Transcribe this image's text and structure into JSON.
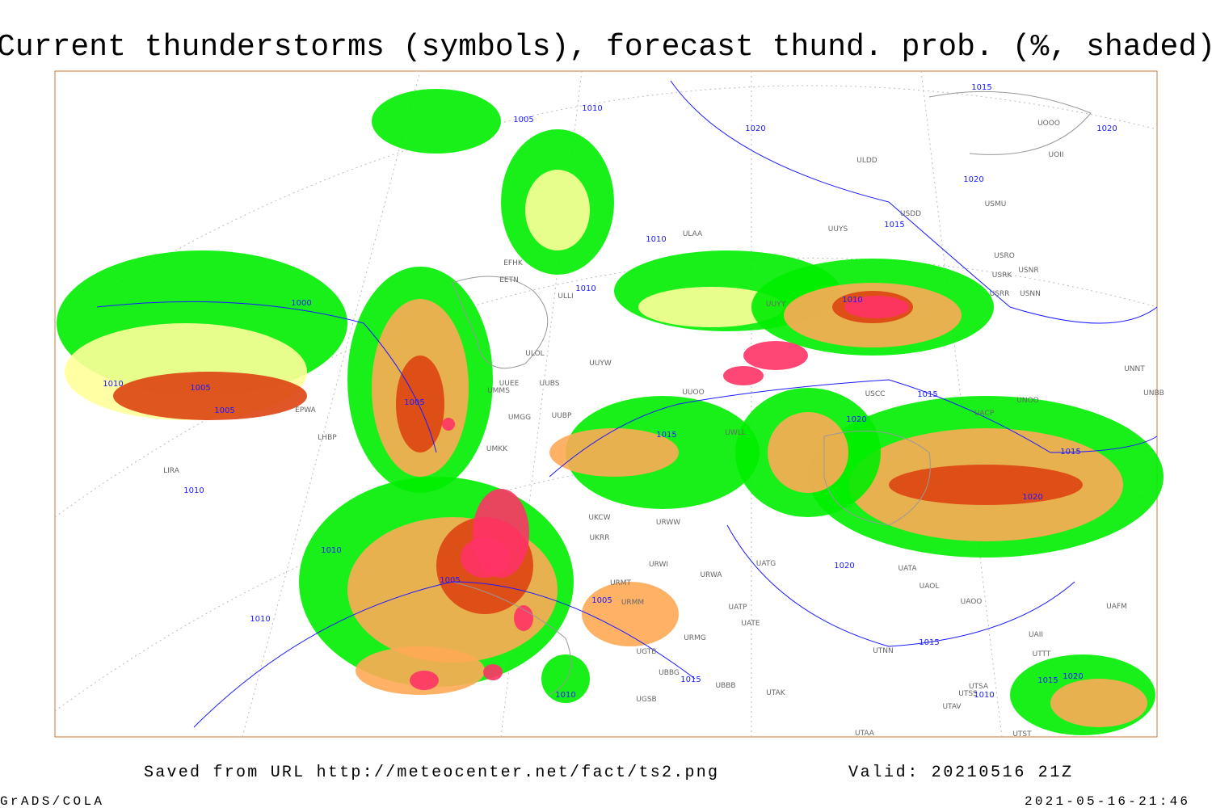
{
  "title": "Current thunderstorms (symbols), forecast thund. prob. (%, shaded)",
  "footer": {
    "source": "Saved from URL http://meteocenter.net/fact/ts2.png",
    "valid": "Valid: 20210516 21Z",
    "software": "GrADS/COLA",
    "timestamp": "2021-05-16-21:46"
  },
  "isobar_labels": [
    "1015",
    "1010",
    "1005",
    "1020",
    "1020",
    "1020",
    "1015",
    "1010",
    "1010",
    "1000",
    "1010",
    "1010",
    "1005",
    "1005",
    "1005",
    "1015",
    "1020",
    "1015",
    "1015",
    "1010",
    "1020",
    "1010",
    "1020",
    "1005",
    "1005",
    "1010",
    "1015",
    "1015",
    "1010",
    "1020",
    "1015",
    "1010"
  ],
  "station_labels": [
    "UOOO",
    "UOII",
    "ULDD",
    "USMU",
    "USDD",
    "UUYS",
    "ULAA",
    "USRO",
    "USRK",
    "USNR",
    "USRR",
    "USNN",
    "EFHK",
    "EETN",
    "ULLI",
    "UUYY",
    "ULOL",
    "UUYW",
    "UUEE",
    "UUBS",
    "UMMS",
    "UUOO",
    "UMGG",
    "UUBP",
    "USCC",
    "UACP",
    "UNOO",
    "UMKK",
    "UWLL",
    "URWW",
    "UKCW",
    "UKRR",
    "URWI",
    "UATG",
    "URWA",
    "UATA",
    "UAOL",
    "UAOO",
    "URMT",
    "URMM",
    "UATE",
    "UATP",
    "UAFM",
    "UAII",
    "UTTT",
    "URMG",
    "UTNN",
    "UGTB",
    "UBBB",
    "UBBG",
    "UTAK",
    "UTSA",
    "UTSS",
    "UTAV",
    "UGSB",
    "UTAA",
    "UTST",
    "EPWA",
    "LHBP",
    "LIRA",
    "UNNT",
    "UNBB"
  ]
}
